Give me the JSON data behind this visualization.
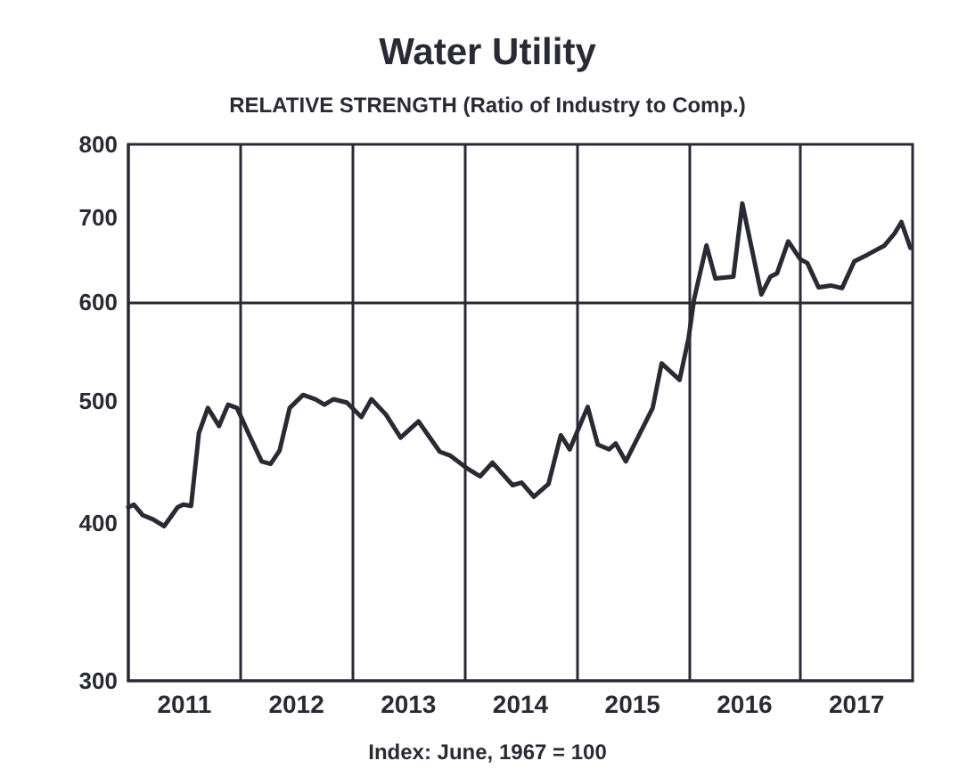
{
  "chart_data": {
    "type": "line",
    "title": "Water Utility",
    "subtitle": "RELATIVE STRENGTH (Ratio of Industry to Comp.)",
    "annotations": [
      "Index: June, 1967 = 100"
    ],
    "x": [
      2011.0,
      2011.05,
      2011.13,
      2011.22,
      2011.32,
      2011.44,
      2011.49,
      2011.56,
      2011.63,
      2011.71,
      2011.81,
      2011.89,
      2011.97,
      2012.08,
      2012.19,
      2012.27,
      2012.35,
      2012.44,
      2012.56,
      2012.67,
      2012.75,
      2012.83,
      2012.95,
      2013.08,
      2013.17,
      2013.3,
      2013.43,
      2013.59,
      2013.78,
      2013.87,
      2014.03,
      2014.14,
      2014.25,
      2014.43,
      2014.51,
      2014.62,
      2014.75,
      2014.86,
      2014.94,
      2015.1,
      2015.19,
      2015.29,
      2015.35,
      2015.44,
      2015.68,
      2015.76,
      2015.92,
      2016.0,
      2016.05,
      2016.16,
      2016.24,
      2016.4,
      2016.48,
      2016.65,
      2016.73,
      2016.79,
      2016.89,
      2017.0,
      2017.06,
      2017.16,
      2017.27,
      2017.37,
      2017.48,
      2017.6,
      2017.75,
      2017.84,
      2017.9,
      2017.98
    ],
    "series": [
      {
        "color": "#2a2a35",
        "values": [
          412,
          414,
          406,
          403,
          398,
          412,
          414,
          413,
          472,
          494,
          478,
          497,
          494,
          470,
          448,
          446,
          457,
          494,
          506,
          502,
          497,
          502,
          499,
          486,
          502,
          488,
          468,
          482,
          456,
          453,
          442,
          436,
          447,
          429,
          431,
          420,
          430,
          470,
          458,
          495,
          462,
          458,
          463,
          448,
          494,
          536,
          520,
          561,
          603,
          665,
          626,
          628,
          718,
          608,
          628,
          632,
          670,
          648,
          644,
          616,
          618,
          615,
          646,
          654,
          665,
          680,
          694,
          662
        ]
      }
    ],
    "xlim": [
      2011,
      2018
    ],
    "xticks": [
      {
        "value": 2011.5,
        "label": "2011"
      },
      {
        "value": 2012.5,
        "label": "2012"
      },
      {
        "value": 2013.5,
        "label": "2013"
      },
      {
        "value": 2014.5,
        "label": "2014"
      },
      {
        "value": 2015.5,
        "label": "2015"
      },
      {
        "value": 2016.5,
        "label": "2016"
      },
      {
        "value": 2017.5,
        "label": "2017"
      }
    ],
    "ylim": [
      300,
      800
    ],
    "yticks": [
      300,
      400,
      500,
      600,
      700,
      800
    ],
    "log": "y",
    "grid": false,
    "marker": "none",
    "line_style": "solid",
    "ref_lines": [
      {
        "axis": "y",
        "value": 600,
        "label": null
      },
      {
        "axis": "x",
        "value": 2012,
        "label": null
      },
      {
        "axis": "x",
        "value": 2013,
        "label": null
      },
      {
        "axis": "x",
        "value": 2014,
        "label": null
      },
      {
        "axis": "x",
        "value": 2015,
        "label": null
      },
      {
        "axis": "x",
        "value": 2016,
        "label": null
      },
      {
        "axis": "x",
        "value": 2017,
        "label": null
      }
    ]
  }
}
